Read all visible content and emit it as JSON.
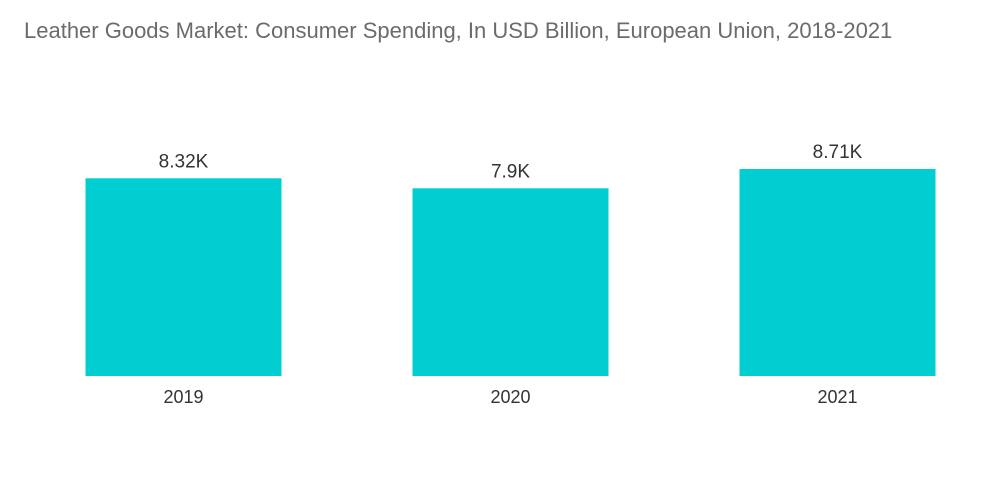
{
  "chart_data": {
    "type": "bar",
    "title": "Leather Goods Market: Consumer Spending, In USD Billion, European Union, 2018-2021",
    "categories": [
      "2019",
      "2020",
      "2021"
    ],
    "values": [
      8320,
      7900,
      8710
    ],
    "data_labels": [
      "8.32K",
      "7.9K",
      "8.71K"
    ],
    "xlabel": "",
    "ylabel": "",
    "ylim": [
      0,
      8710
    ],
    "grid": false,
    "legend": "none",
    "bar_color": "#00CED1"
  }
}
